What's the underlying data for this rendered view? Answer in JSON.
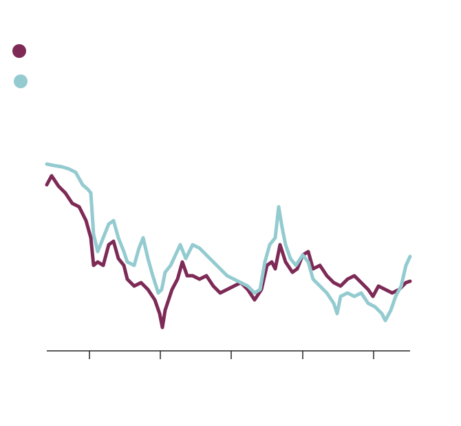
{
  "chart_data": {
    "type": "line",
    "xlim": [
      0,
      528
    ],
    "xticks": [
      62,
      165,
      268,
      372,
      475
    ],
    "ylim": [
      0,
      300
    ],
    "series": [
      {
        "color": "#7d2a56",
        "x": [
          0,
          7,
          17,
          27,
          37,
          47,
          57,
          64,
          68,
          74,
          82,
          90,
          97,
          104,
          112,
          117,
          127,
          137,
          147,
          157,
          164,
          168,
          172,
          182,
          190,
          197,
          204,
          212,
          222,
          232,
          242,
          252,
          262,
          272,
          282,
          292,
          302,
          312,
          320,
          327,
          332,
          339,
          347,
          357,
          364,
          372,
          380,
          387,
          397,
          407,
          417,
          427,
          437,
          447,
          457,
          467,
          474,
          482,
          492,
          502,
          512,
          522,
          528
        ],
        "values": [
          241,
          254,
          239,
          229,
          214,
          209,
          189,
          164,
          124,
          129,
          124,
          154,
          159,
          134,
          124,
          104,
          94,
          99,
          89,
          74,
          54,
          34,
          59,
          89,
          104,
          129,
          109,
          109,
          104,
          109,
          94,
          84,
          89,
          94,
          99,
          89,
          74,
          89,
          124,
          129,
          119,
          154,
          129,
          114,
          119,
          139,
          144,
          119,
          124,
          109,
          99,
          94,
          104,
          109,
          99,
          89,
          79,
          94,
          89,
          84,
          89,
          99,
          101
        ]
      },
      {
        "color": "#93cbd0",
        "x": [
          0,
          10,
          22,
          32,
          42,
          52,
          60,
          64,
          68,
          74,
          82,
          90,
          97,
          104,
          112,
          117,
          127,
          134,
          140,
          147,
          154,
          162,
          167,
          172,
          180,
          187,
          194,
          202,
          212,
          222,
          232,
          242,
          252,
          262,
          272,
          282,
          292,
          302,
          310,
          317,
          324,
          332,
          337,
          342,
          347,
          354,
          362,
          372,
          380,
          387,
          397,
          407,
          417,
          422,
          427,
          437,
          447,
          457,
          467,
          477,
          487,
          492,
          500,
          507,
          515,
          522,
          528
        ],
        "values": [
          271,
          269,
          267,
          264,
          259,
          241,
          234,
          229,
          169,
          144,
          164,
          184,
          189,
          164,
          144,
          129,
          124,
          149,
          164,
          134,
          109,
          84,
          89,
          114,
          124,
          139,
          154,
          134,
          154,
          149,
          139,
          129,
          119,
          109,
          104,
          99,
          94,
          84,
          89,
          129,
          154,
          164,
          209,
          179,
          154,
          134,
          124,
          139,
          129,
          104,
          94,
          84,
          69,
          54,
          79,
          84,
          79,
          84,
          69,
          64,
          54,
          44,
          59,
          79,
          94,
          124,
          137
        ]
      }
    ]
  }
}
